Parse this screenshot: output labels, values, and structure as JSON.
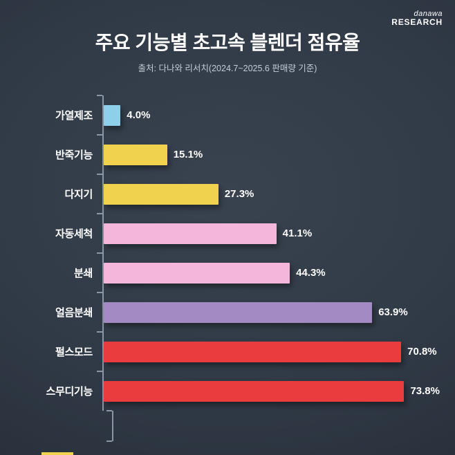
{
  "page": {
    "title": "주요 기능별 초고속 블렌더 점유율",
    "subtitle": "출처: 다나와 리서치(2024.7~2025.6 판매량 기준)",
    "logo_line1": "danawa",
    "logo_line2": "RESEARCH"
  },
  "chart_data": {
    "type": "bar",
    "orientation": "horizontal",
    "title": "주요 기능별 초고속 블렌더 점유율",
    "source": "출처: 다나와 리서치(2024.7~2025.6 판매량 기준)",
    "categories": [
      "가열제조",
      "반죽기능",
      "다지기",
      "자동세척",
      "분쇄",
      "얼음분쇄",
      "펄스모드",
      "스무디기능"
    ],
    "values": [
      4.0,
      15.1,
      27.3,
      41.1,
      44.3,
      63.9,
      70.8,
      73.8
    ],
    "value_labels": [
      "4.0%",
      "15.1%",
      "27.3%",
      "41.1%",
      "44.3%",
      "63.9%",
      "70.8%",
      "73.8%"
    ],
    "bar_colors": [
      "#8ed0ea",
      "#f0d24e",
      "#f0d24e",
      "#f4b6da",
      "#f4b6da",
      "#a38ac2",
      "#ea3b3e",
      "#ea3b3e"
    ],
    "xlim": [
      0,
      80
    ],
    "grid": false,
    "legend": false,
    "unit": "%"
  },
  "colors": {
    "background": "#313b47",
    "text": "#ffffff",
    "subtitle_text": "#c3cdd7",
    "axis": "#8b97a6",
    "accent_yellow": "#f0d24e"
  }
}
